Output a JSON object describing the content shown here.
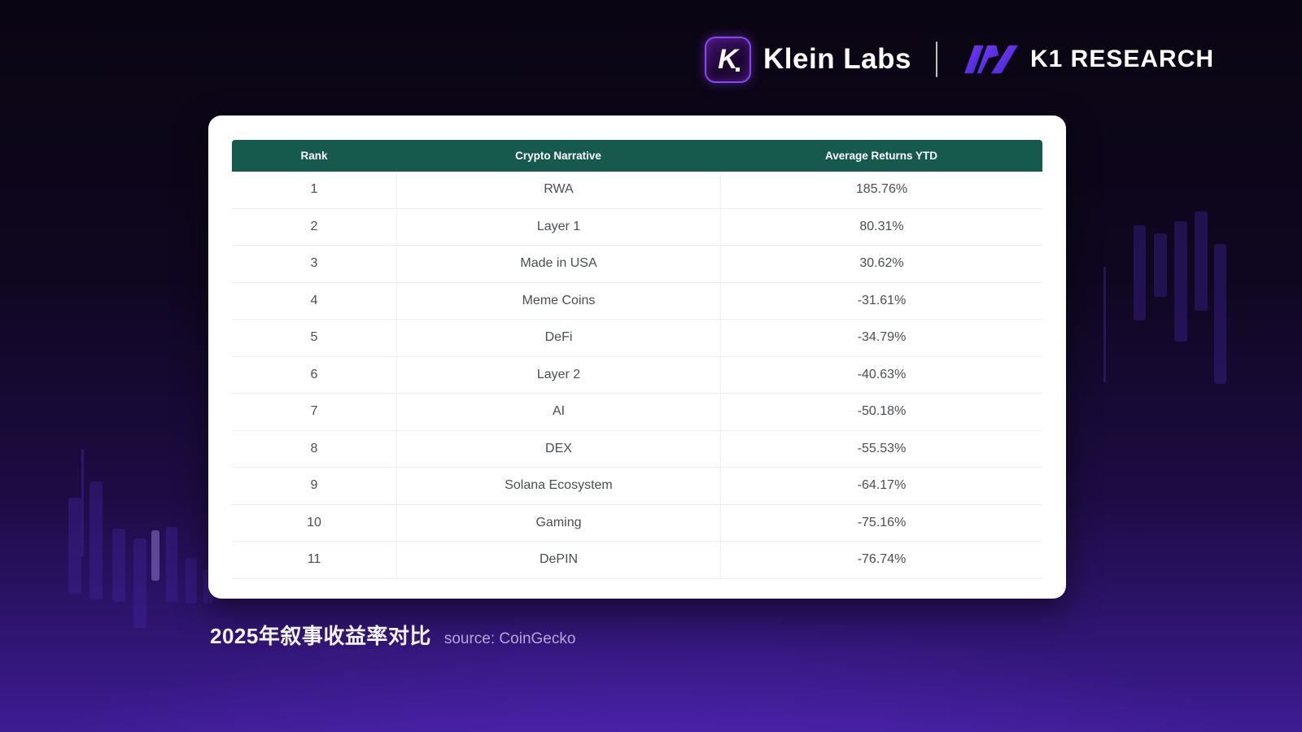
{
  "brand": {
    "klein_icon_letter": "K",
    "klein_labs_label": "Klein Labs",
    "divider": "|",
    "k1_research_label": "K1 RESEARCH"
  },
  "chart_data": {
    "type": "table",
    "title": "2025年叙事收益率对比",
    "source_label": "source: CoinGecko",
    "columns": [
      "Rank",
      "Crypto Narrative",
      "Average Returns YTD"
    ],
    "rows": [
      {
        "rank": "1",
        "narrative": "RWA",
        "returns": "185.76%"
      },
      {
        "rank": "2",
        "narrative": "Layer 1",
        "returns": "80.31%"
      },
      {
        "rank": "3",
        "narrative": "Made in USA",
        "returns": "30.62%"
      },
      {
        "rank": "4",
        "narrative": "Meme Coins",
        "returns": "-31.61%"
      },
      {
        "rank": "5",
        "narrative": "DeFi",
        "returns": "-34.79%"
      },
      {
        "rank": "6",
        "narrative": "Layer 2",
        "returns": "-40.63%"
      },
      {
        "rank": "7",
        "narrative": "AI",
        "returns": "-50.18%"
      },
      {
        "rank": "8",
        "narrative": "DEX",
        "returns": "-55.53%"
      },
      {
        "rank": "9",
        "narrative": "Solana Ecosystem",
        "returns": "-64.17%"
      },
      {
        "rank": "10",
        "narrative": "Gaming",
        "returns": "-75.16%"
      },
      {
        "rank": "11",
        "narrative": "DePIN",
        "returns": "-76.74%"
      }
    ],
    "categories": [
      "RWA",
      "Layer 1",
      "Made in USA",
      "Meme Coins",
      "DeFi",
      "Layer 2",
      "AI",
      "DEX",
      "Solana Ecosystem",
      "Gaming",
      "DePIN"
    ],
    "values_pct": [
      185.76,
      80.31,
      30.62,
      -31.61,
      -34.79,
      -40.63,
      -50.18,
      -55.53,
      -64.17,
      -75.16,
      -76.74
    ],
    "legend": "none",
    "grid": "row-separators"
  },
  "colors": {
    "table_header_bg": "#165a4e",
    "card_bg": "#ffffff",
    "accent_purple": "#8b45f7",
    "background_top": "#0a0512",
    "background_bottom": "#3d1c92",
    "cell_text": "#4a4d52",
    "source_text": "#b4a7d4"
  }
}
